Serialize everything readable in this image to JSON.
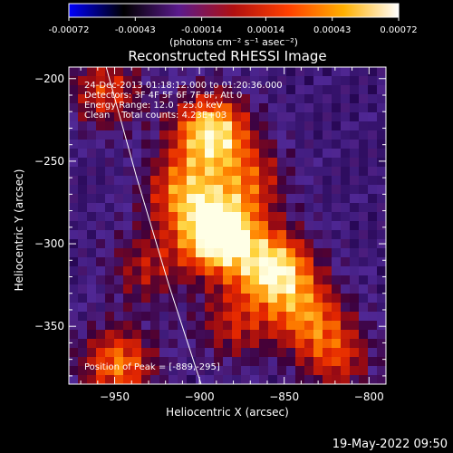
{
  "colorbar": {
    "min": -0.00072,
    "max": 0.00072,
    "tick_labels": [
      "-0.00072",
      "-0.00043",
      "-0.00014",
      "0.00014",
      "0.00043",
      "0.00072"
    ],
    "units_label": "(photons cm⁻² s⁻¹ asec⁻²)",
    "colors": [
      "#0000ff",
      "#000000",
      "#5a1a8c",
      "#b01010",
      "#ff4000",
      "#ffb000",
      "#ffffff"
    ]
  },
  "chart_data": {
    "type": "heatmap",
    "title": "Reconstructed RHESSI Image",
    "xlabel": "Heliocentric X (arcsec)",
    "ylabel": "Heliocentric Y (arcsec)",
    "xlim": [
      -977,
      -790
    ],
    "ylim": [
      -385,
      -193
    ],
    "x_ticks": [
      -950,
      -900,
      -850,
      -800
    ],
    "y_ticks": [
      -200,
      -250,
      -300,
      -350
    ],
    "x_tick_labels": [
      "−950",
      "−900",
      "−850",
      "−800"
    ],
    "y_tick_labels": [
      "−200",
      "−250",
      "−300",
      "−350"
    ],
    "annotations": [
      "24-Dec-2013 01:18:12.000 to 01:20:36.000",
      "Detectors: 3F 4F 5F 6F 7F 8F, Att 0",
      "Energy Range: 12.0 - 25.0 keV",
      "Clean    Total counts: 4.23E+03"
    ],
    "peak_label": "Position of Peak = [-889,-295]",
    "peak": {
      "x": -889,
      "y": -295
    },
    "sources": [
      {
        "x": -889,
        "y": -295,
        "intensity": 1.0
      },
      {
        "x": -893,
        "y": -232,
        "intensity": 0.82
      },
      {
        "x": -855,
        "y": -316,
        "intensity": 0.82
      },
      {
        "x": -948,
        "y": -373,
        "intensity": 0.6
      },
      {
        "x": -910,
        "y": -268,
        "intensity": 0.55
      },
      {
        "x": -835,
        "y": -345,
        "intensity": 0.5
      },
      {
        "x": -955,
        "y": -208,
        "intensity": 0.45
      },
      {
        "x": -870,
        "y": -262,
        "intensity": 0.42
      },
      {
        "x": -818,
        "y": -370,
        "intensity": 0.4
      },
      {
        "x": -932,
        "y": -315,
        "intensity": 0.35
      },
      {
        "x": -880,
        "y": -350,
        "intensity": 0.38
      }
    ],
    "limb": [
      {
        "x": -955,
        "y": -193
      },
      {
        "x": -937,
        "y": -260
      },
      {
        "x": -918,
        "y": -325
      },
      {
        "x": -899,
        "y": -385
      }
    ]
  },
  "footer": {
    "timestamp": "19-May-2022 09:50"
  }
}
